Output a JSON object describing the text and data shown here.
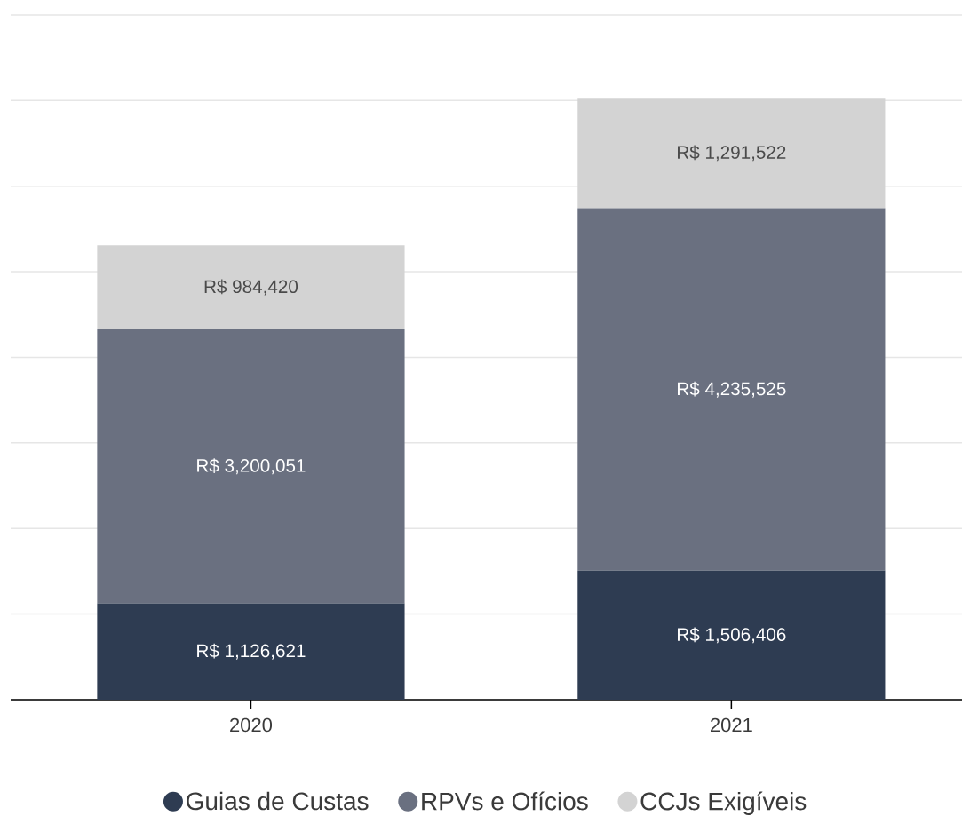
{
  "chart_data": {
    "type": "bar",
    "stacked": true,
    "categories": [
      "2020",
      "2021"
    ],
    "series": [
      {
        "name": "Guias de Custas",
        "color": "#2e3c52",
        "values": [
          1126621,
          1506406
        ],
        "value_labels": [
          "R$ 1,126,621",
          "R$ 1,506,406"
        ]
      },
      {
        "name": "RPVs e Ofícios",
        "color": "#6a7080",
        "values": [
          3200051,
          4235525
        ],
        "value_labels": [
          "R$ 3,200,051",
          "R$ 4,235,525"
        ]
      },
      {
        "name": "CCJs Exigíveis",
        "color": "#d3d3d3",
        "values": [
          984420,
          1291522
        ],
        "value_labels": [
          "R$ 984,420",
          "R$ 1,291,522"
        ]
      }
    ],
    "ylim": [
      0,
      8000000
    ],
    "yticks": [
      {
        "value": 0,
        "label": null
      },
      {
        "value": 1000000,
        "label": null
      },
      {
        "value": 2000000,
        "label": null
      },
      {
        "value": 3000000,
        "label": null
      },
      {
        "value": 4000000,
        "label": null
      },
      {
        "value": 5000000,
        "label": null
      },
      {
        "value": 6000000,
        "label": null
      },
      {
        "value": 7000000,
        "label": null
      },
      {
        "value": 8000000,
        "label": null
      }
    ],
    "grid": "y",
    "legend": "bottom",
    "tick_labels": "x"
  }
}
